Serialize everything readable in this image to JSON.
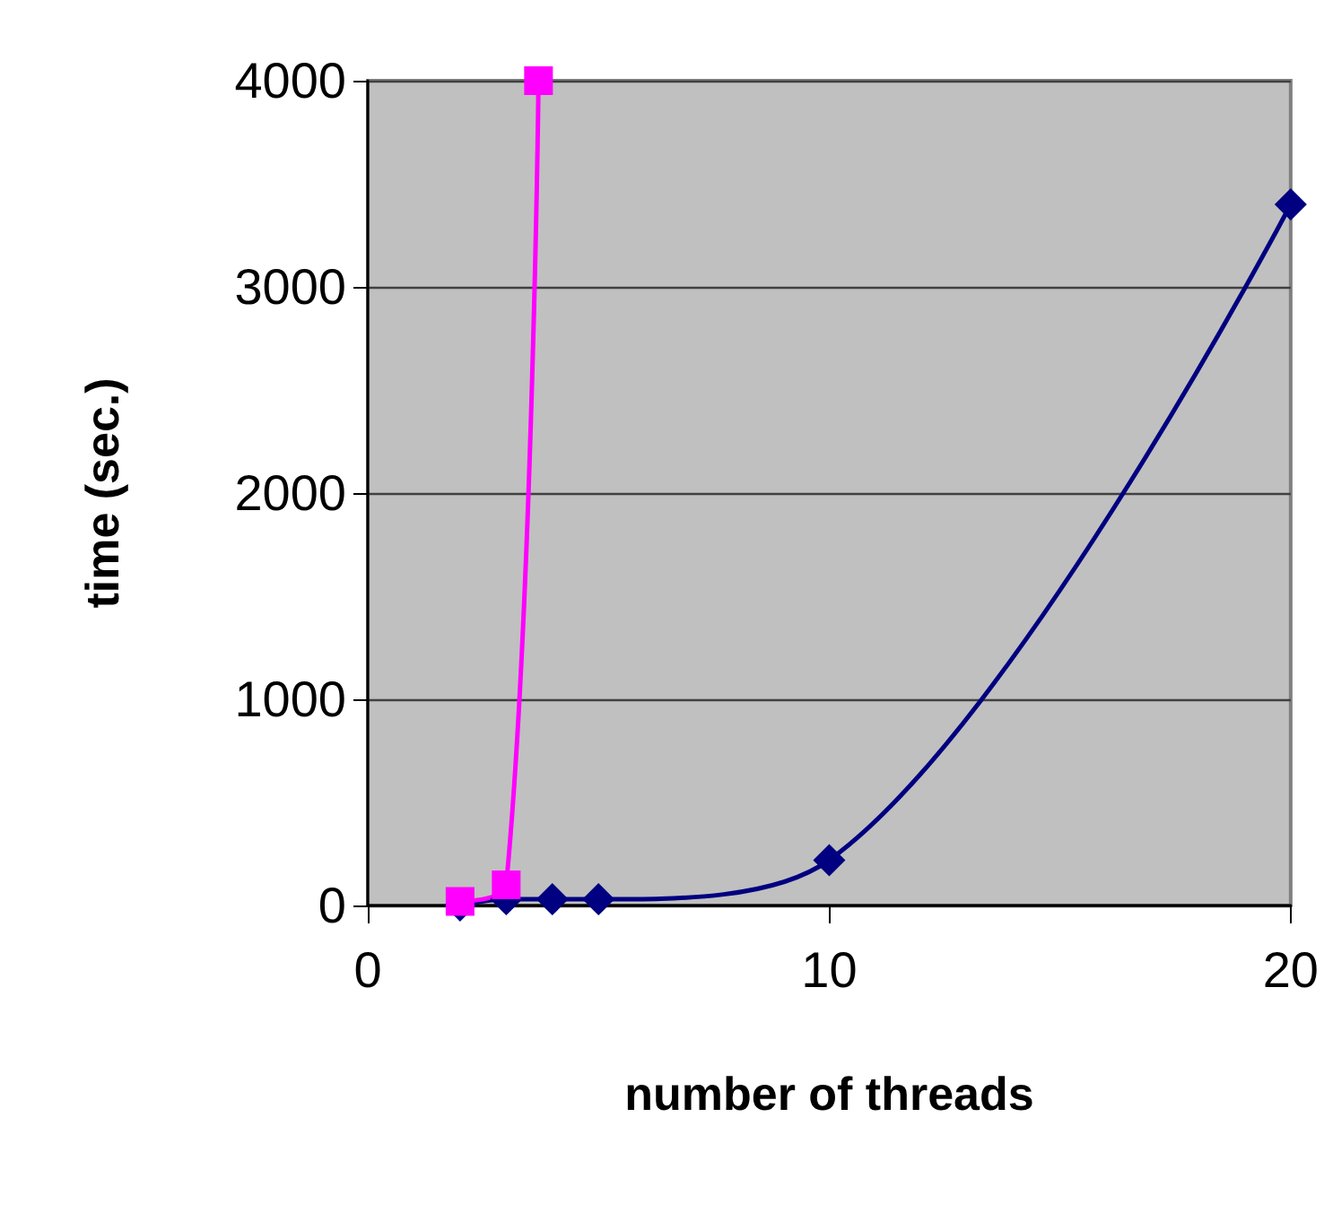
{
  "chart_data": {
    "type": "line",
    "xlabel": "number of threads",
    "ylabel": "time (sec.)",
    "series": [
      {
        "color": "#000080",
        "marker": "diamond",
        "x": [
          2,
          3,
          4,
          5,
          10,
          20
        ],
        "values": [
          0,
          30,
          30,
          30,
          220,
          3400
        ]
      },
      {
        "color": "#ff00ff",
        "marker": "square",
        "x": [
          2,
          3,
          3.7
        ],
        "values": [
          20,
          100,
          4000
        ]
      }
    ],
    "xlim": [
      0,
      20
    ],
    "xticks": [
      0,
      10,
      20
    ],
    "ylim": [
      0,
      4000
    ],
    "yticks": [
      0,
      1000,
      2000,
      3000,
      4000
    ],
    "grid": "y"
  }
}
